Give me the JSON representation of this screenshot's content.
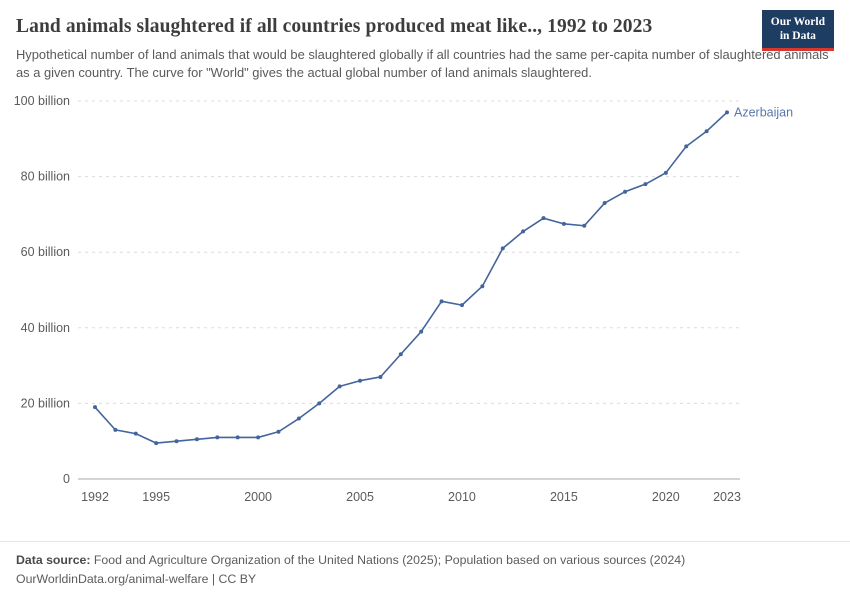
{
  "header": {
    "title": "Land animals slaughtered if all countries produced meat like.., 1992 to 2023",
    "subtitle": "Hypothetical number of land animals that would be slaughtered globally if all countries had the same per-capita number of slaughtered animals as a given country. The curve for \"World\" gives the actual global number of land animals slaughtered."
  },
  "logo": {
    "line1": "Our World",
    "line2": "in Data",
    "bg_color": "#1d3d63",
    "accent_color": "#d7382b"
  },
  "chart_data": {
    "type": "line",
    "title": "Land animals slaughtered if all countries produced meat like.., 1992 to 2023",
    "xlabel": "",
    "ylabel": "",
    "unit": "billion",
    "grid": true,
    "legend_position": "end-of-line",
    "xlim": [
      1992,
      2023
    ],
    "ylim": [
      0,
      100
    ],
    "yticks": [
      {
        "value": 0,
        "label": "0"
      },
      {
        "value": 20,
        "label": "20 billion"
      },
      {
        "value": 40,
        "label": "40 billion"
      },
      {
        "value": 60,
        "label": "60 billion"
      },
      {
        "value": 80,
        "label": "80 billion"
      },
      {
        "value": 100,
        "label": "100 billion"
      }
    ],
    "xticks": [
      {
        "value": 1992,
        "label": "1992"
      },
      {
        "value": 1995,
        "label": "1995"
      },
      {
        "value": 2000,
        "label": "2000"
      },
      {
        "value": 2005,
        "label": "2005"
      },
      {
        "value": 2010,
        "label": "2010"
      },
      {
        "value": 2015,
        "label": "2015"
      },
      {
        "value": 2020,
        "label": "2020"
      },
      {
        "value": 2023,
        "label": "2023"
      }
    ],
    "series": [
      {
        "name": "Azerbaijan",
        "color": "#44659b",
        "label_color": "#5878ab",
        "x": [
          1992,
          1993,
          1994,
          1995,
          1996,
          1997,
          1998,
          1999,
          2000,
          2001,
          2002,
          2003,
          2004,
          2005,
          2006,
          2007,
          2008,
          2009,
          2010,
          2011,
          2012,
          2013,
          2014,
          2015,
          2016,
          2017,
          2018,
          2019,
          2020,
          2021,
          2022,
          2023
        ],
        "values": [
          19,
          13,
          12,
          9.5,
          10,
          10.5,
          11,
          11,
          11,
          12.5,
          16,
          20,
          24.5,
          26,
          27,
          33,
          39,
          47,
          46,
          51,
          61,
          65.5,
          69,
          67.5,
          67,
          73,
          76,
          78,
          81,
          88,
          92,
          97
        ]
      }
    ]
  },
  "footer": {
    "source_label": "Data source:",
    "source_text": "Food and Agriculture Organization of the United Nations (2025); Population based on various sources (2024)",
    "link_line": "OurWorldinData.org/animal-welfare | CC BY"
  }
}
